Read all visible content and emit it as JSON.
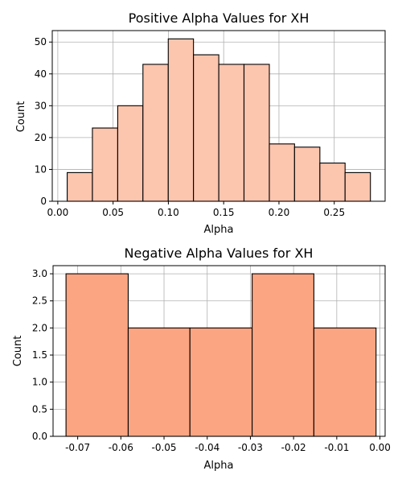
{
  "chart_data": [
    {
      "type": "bar",
      "title": "Positive Alpha Values for XH",
      "xlabel": "Alpha",
      "ylabel": "Count",
      "xlim": [
        -0.005,
        0.296
      ],
      "ylim": [
        0,
        53.6
      ],
      "x_ticks": [
        "0.00",
        "0.05",
        "0.10",
        "0.15",
        "0.20",
        "0.25"
      ],
      "y_ticks": [
        "0",
        "10",
        "20",
        "30",
        "40",
        "50"
      ],
      "grid": true,
      "bar_color": "#fcc5ae",
      "bins": [
        {
          "start": 0.0085,
          "end": 0.0313,
          "count": 9
        },
        {
          "start": 0.0313,
          "end": 0.0542,
          "count": 23
        },
        {
          "start": 0.0542,
          "end": 0.077,
          "count": 30
        },
        {
          "start": 0.077,
          "end": 0.0999,
          "count": 43
        },
        {
          "start": 0.0999,
          "end": 0.1227,
          "count": 51
        },
        {
          "start": 0.1227,
          "end": 0.1456,
          "count": 46
        },
        {
          "start": 0.1456,
          "end": 0.1684,
          "count": 43
        },
        {
          "start": 0.1684,
          "end": 0.1913,
          "count": 43
        },
        {
          "start": 0.1913,
          "end": 0.2141,
          "count": 18
        },
        {
          "start": 0.2141,
          "end": 0.237,
          "count": 17
        },
        {
          "start": 0.237,
          "end": 0.2598,
          "count": 12
        },
        {
          "start": 0.2598,
          "end": 0.2827,
          "count": 9
        }
      ]
    },
    {
      "type": "bar",
      "title": "Negative Alpha Values for XH",
      "xlabel": "Alpha",
      "ylabel": "Count",
      "xlim": [
        -0.0757,
        0.0012
      ],
      "ylim": [
        0,
        3.15
      ],
      "x_ticks": [
        "-0.07",
        "-0.06",
        "-0.05",
        "-0.04",
        "-0.03",
        "-0.02",
        "-0.01",
        "0.00"
      ],
      "y_ticks": [
        "0.0",
        "0.5",
        "1.0",
        "1.5",
        "2.0",
        "2.5",
        "3.0"
      ],
      "grid": true,
      "bar_color": "#fca582",
      "bins": [
        {
          "start": -0.0727,
          "end": -0.0583,
          "count": 3
        },
        {
          "start": -0.0583,
          "end": -0.044,
          "count": 2
        },
        {
          "start": -0.044,
          "end": -0.0296,
          "count": 2
        },
        {
          "start": -0.0296,
          "end": -0.0153,
          "count": 3
        },
        {
          "start": -0.0153,
          "end": -0.0009,
          "count": 2
        }
      ]
    }
  ]
}
